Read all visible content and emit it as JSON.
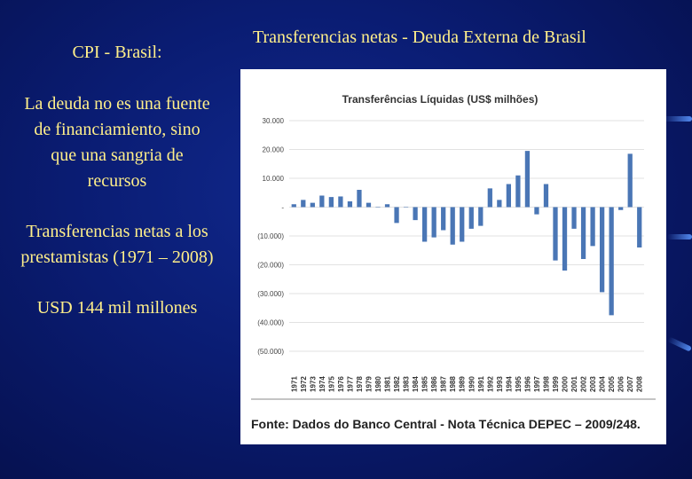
{
  "left_panel": {
    "title": "CPI - Brasil:",
    "para1": "La deuda no es una fuente de financiamiento, sino que una sangria de recursos",
    "para2": "Transferencias netas a los prestamistas (1971 – 2008)",
    "para3": "USD 144 mil millones"
  },
  "slide_title": "Transferencias netas - Deuda Externa de Brasil",
  "source": "Fonte: Dados do Banco Central - Nota Técnica DEPEC – 2009/248.",
  "colors": {
    "bar": "#4a76b5",
    "text_accent": "#ffef8a"
  },
  "chart_data": {
    "type": "bar",
    "title": "Transferências Líquidas (US$ milhões)",
    "xlabel": "",
    "ylabel": "",
    "ylim": [
      -50000,
      30000
    ],
    "yticks": [
      30000,
      20000,
      10000,
      0,
      -10000,
      -20000,
      -30000,
      -40000,
      -50000
    ],
    "ytick_labels": [
      "30.000",
      "20.000",
      "10.000",
      "-",
      "(10.000)",
      "(20.000)",
      "(30.000)",
      "(40.000)",
      "(50.000)"
    ],
    "categories": [
      "1971",
      "1972",
      "1973",
      "1974",
      "1975",
      "1976",
      "1977",
      "1978",
      "1979",
      "1980",
      "1981",
      "1982",
      "1983",
      "1984",
      "1985",
      "1986",
      "1987",
      "1988",
      "1989",
      "1990",
      "1991",
      "1992",
      "1993",
      "1994",
      "1995",
      "1996",
      "1997",
      "1998",
      "1999",
      "2000",
      "2001",
      "2002",
      "2003",
      "2004",
      "2005",
      "2006",
      "2007",
      "2008"
    ],
    "values": [
      1000,
      2500,
      1500,
      4000,
      3500,
      3700,
      2000,
      6000,
      1500,
      0,
      1000,
      -5500,
      0,
      -4500,
      -12000,
      -10500,
      -8000,
      -13000,
      -12000,
      -7500,
      -6500,
      6500,
      2500,
      8000,
      11000,
      19500,
      -2500,
      8000,
      -18500,
      -22000,
      -7500,
      -18000,
      -13500,
      -29500,
      -37500,
      -1000,
      18500,
      -14000
    ]
  }
}
